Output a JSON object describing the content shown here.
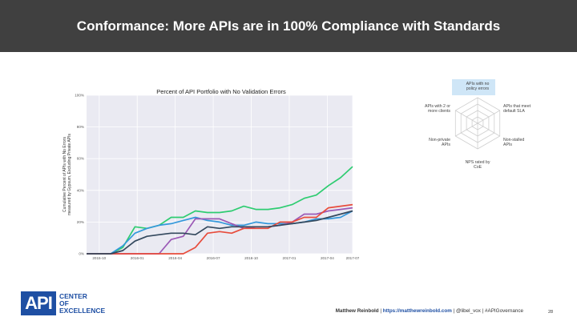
{
  "header": {
    "title": "Conformance: More APIs are in 100% Compliance with Standards"
  },
  "chart_data": {
    "type": "line",
    "title": "Percent of API Portfolio with No Validation Errors",
    "ylabel": "Cumulative Percent of APIs with No Errors measured by Gypsum, Excluding Private APIs",
    "ylabel_lines": [
      "Cumulative Percent of APIs with No Errors",
      "measured by Gypsum, Excluding Private APIs"
    ],
    "ylim": [
      0,
      100
    ],
    "yticks": [
      "0%",
      "20%",
      "40%",
      "60%",
      "80%",
      "100%"
    ],
    "xlim": [
      0,
      21
    ],
    "xticks": [
      {
        "pos": 1,
        "label": "2015-10"
      },
      {
        "pos": 4,
        "label": "2016-01"
      },
      {
        "pos": 7,
        "label": "2016-04"
      },
      {
        "pos": 10,
        "label": "2016-07"
      },
      {
        "pos": 13,
        "label": "2016-10"
      },
      {
        "pos": 16,
        "label": "2017-01"
      },
      {
        "pos": 19,
        "label": "2017-04"
      },
      {
        "pos": 21,
        "label": "2017-07"
      }
    ],
    "grid": true,
    "series": [
      {
        "color": "#2ecc71",
        "values": [
          0,
          0,
          0,
          4,
          17,
          16,
          18,
          23,
          23,
          27,
          26,
          26,
          27,
          30,
          28,
          28,
          29,
          31,
          35,
          37,
          43,
          48,
          55
        ]
      },
      {
        "color": "#3498db",
        "values": [
          0,
          0,
          0,
          5,
          13,
          16,
          18,
          19,
          21,
          23,
          21,
          20,
          18,
          18,
          20,
          19,
          19,
          19,
          20,
          22,
          22,
          23,
          27
        ]
      },
      {
        "color": "#9b59b6",
        "values": [
          0,
          0,
          0,
          0,
          0,
          0,
          0,
          9,
          11,
          22,
          22,
          22,
          19,
          16,
          17,
          17,
          18,
          20,
          25,
          25,
          27,
          28,
          29
        ]
      },
      {
        "color": "#e74c3c",
        "values": [
          0,
          0,
          0,
          0,
          0,
          0,
          0,
          0,
          0,
          4,
          13,
          14,
          13,
          16,
          16,
          16,
          20,
          20,
          23,
          23,
          29,
          30,
          31
        ]
      },
      {
        "color": "#34495e",
        "values": [
          0,
          0,
          0,
          2,
          8,
          11,
          12,
          13,
          13,
          12,
          17,
          16,
          17,
          17,
          17,
          17,
          18,
          19,
          20,
          21,
          23,
          25,
          27
        ]
      }
    ]
  },
  "radar": {
    "axes": [
      "APIs with no policy errors",
      "APIs that meet default SLA",
      "Non-stalled APIs",
      "NPS rated by CoE",
      "Non-private APIs",
      "APIs with 2 or more clients"
    ],
    "highlight_color": "#cfe6f7"
  },
  "logo": {
    "mark": "API",
    "lines": [
      "CENTER",
      "OF",
      "EXCELLENCE"
    ]
  },
  "footer": {
    "author": "Matthew Reinbold",
    "url": "https://matthewreinbold.com",
    "handle": "@libel_vox",
    "tag": "#APIGovernance",
    "sep": " | "
  },
  "page_number": "28"
}
